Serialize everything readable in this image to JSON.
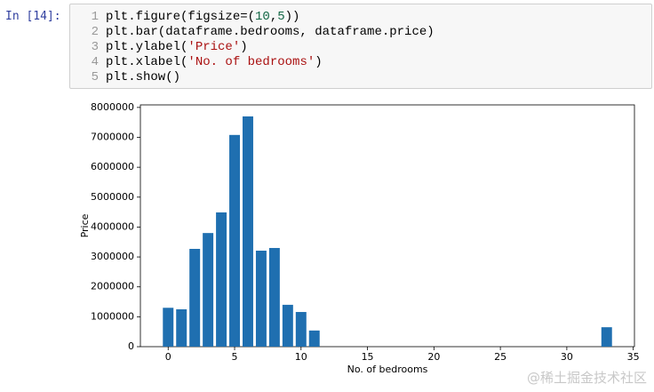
{
  "prompt": "In [14]:",
  "code": [
    "plt.figure(figsize=(10,5))",
    "plt.bar(dataframe.bedrooms, dataframe.price)",
    "plt.ylabel('Price')",
    "plt.xlabel('No. of bedrooms')",
    "plt.show()"
  ],
  "line_numbers": [
    "1",
    "2",
    "3",
    "4",
    "5"
  ],
  "chart_data": {
    "type": "bar",
    "x_label": "No. of bedrooms",
    "y_label": "Price",
    "x": [
      0,
      1,
      2,
      3,
      4,
      5,
      6,
      7,
      8,
      9,
      10,
      11,
      33
    ],
    "values": [
      1300000,
      1250000,
      3270000,
      3800000,
      4490000,
      7080000,
      7700000,
      3210000,
      3300000,
      1400000,
      1160000,
      540000,
      650000
    ],
    "color": "#1f6fb0",
    "xlim": [
      -2.09,
      35.09
    ],
    "xticks": [
      0,
      5,
      10,
      15,
      20,
      25,
      30,
      35
    ],
    "ylim": [
      0,
      8085000
    ],
    "yticks": [
      0,
      1000000,
      2000000,
      3000000,
      4000000,
      5000000,
      6000000,
      7000000,
      8000000
    ]
  },
  "watermark": "@稀土掘金技术社区"
}
